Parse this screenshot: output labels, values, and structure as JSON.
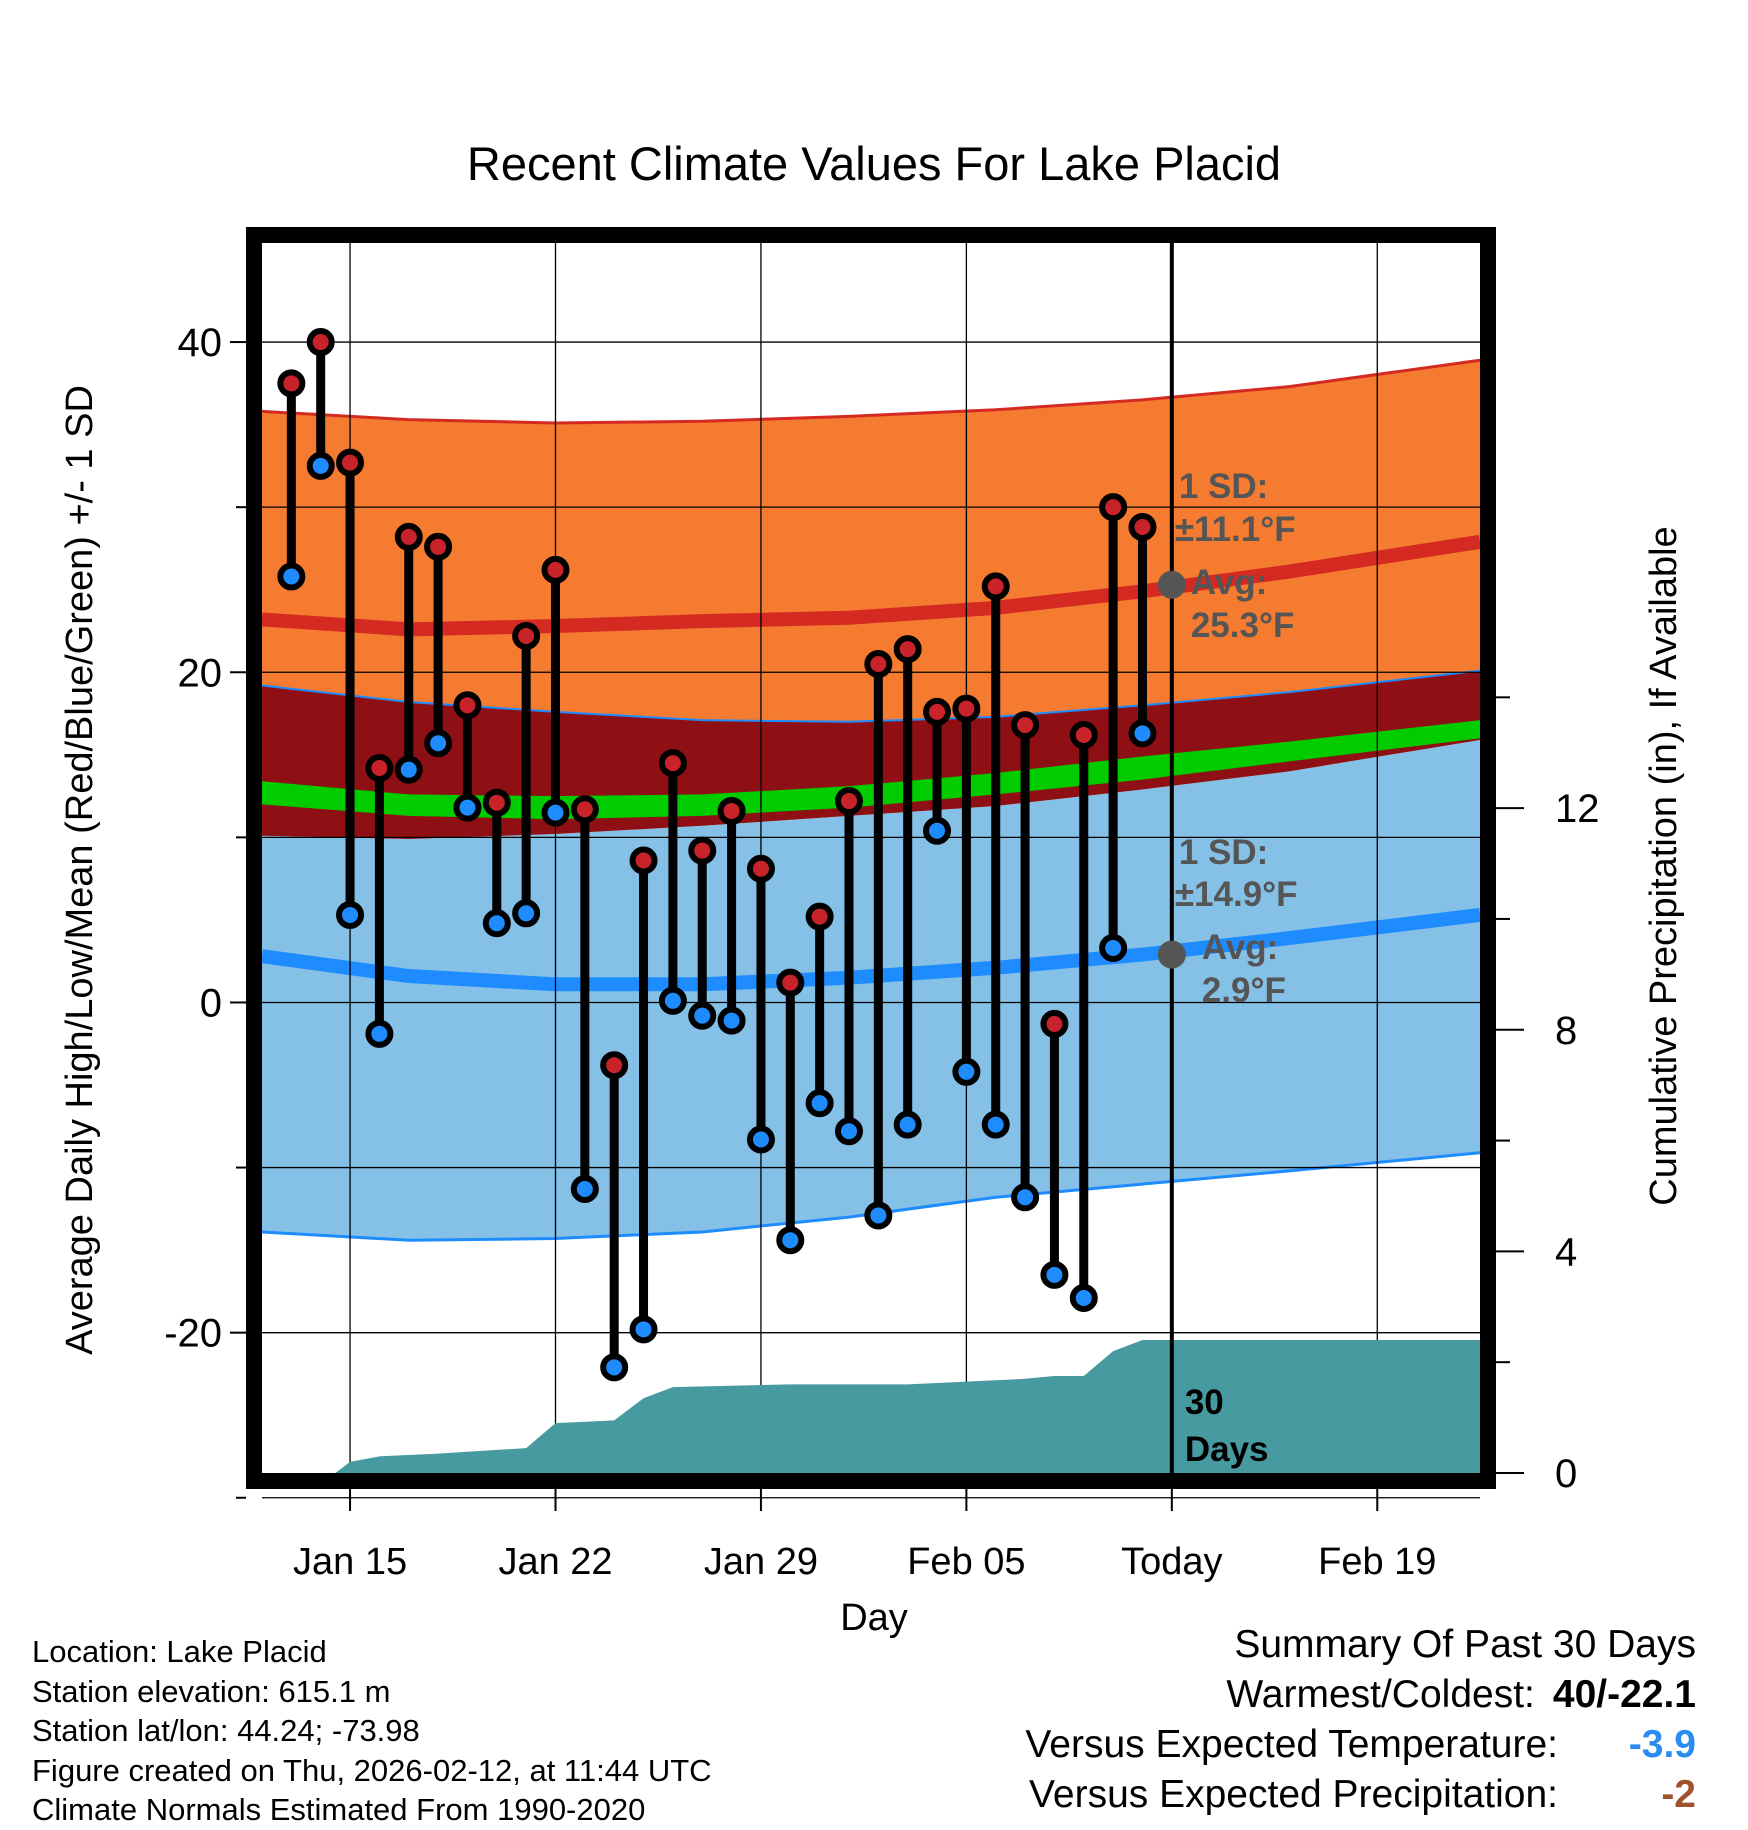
{
  "chart_data": {
    "type": "line",
    "title": "Recent Climate Values For Lake Placid",
    "xlabel": "Day",
    "ylabel": "Average Daily High/Low/Mean (Red/Blue/Green) +/- 1 SD",
    "y2label": "Cumulative Precipitation (in), If Available",
    "ylim": [
      -28.5,
      46
    ],
    "y2lim": [
      0,
      22.2
    ],
    "xlim": [
      0,
      41.5
    ],
    "y_ticks": [
      -20,
      0,
      20,
      40
    ],
    "y2_ticks": [
      0,
      4,
      8,
      12
    ],
    "x_ticks": [
      {
        "day": 3,
        "label": "Jan 15"
      },
      {
        "day": 10,
        "label": "Jan 22"
      },
      {
        "day": 17,
        "label": "Jan 29"
      },
      {
        "day": 24,
        "label": "Feb 05"
      },
      {
        "day": 31,
        "label": "Today"
      },
      {
        "day": 38,
        "label": "Feb 19"
      }
    ],
    "days": [
      1,
      2,
      3,
      4,
      5,
      6,
      7,
      8,
      9,
      10,
      11,
      12,
      13,
      14,
      15,
      16,
      17,
      18,
      19,
      20,
      21,
      22,
      23,
      24,
      25,
      26,
      27,
      28,
      29,
      30
    ],
    "highs": [
      37.5,
      40,
      32.7,
      14.2,
      28.2,
      27.6,
      18,
      12.1,
      22.2,
      26.2,
      11.7,
      -3.8,
      8.6,
      14.5,
      9.2,
      11.6,
      8.1,
      1.2,
      5.2,
      12.2,
      20.5,
      21.4,
      17.6,
      17.8,
      25.2,
      16.8,
      -1.3,
      16.2,
      30,
      28.8
    ],
    "lows": [
      25.8,
      32.5,
      5.3,
      -1.9,
      14.1,
      15.7,
      11.8,
      4.8,
      5.4,
      11.5,
      -11.3,
      -22.1,
      -19.8,
      0.1,
      -0.8,
      -1.1,
      -8.3,
      -14.4,
      -6.1,
      -7.8,
      -12.9,
      -7.4,
      10.4,
      -4.2,
      -7.4,
      -11.8,
      -16.5,
      -17.9,
      3.3,
      16.3
    ],
    "normal_high": {
      "x": [
        0,
        5,
        10,
        15,
        20,
        25,
        30,
        35,
        41.5
      ],
      "mean": [
        23.2,
        22.6,
        22.8,
        23.1,
        23.3,
        23.9,
        24.9,
        26.1,
        27.9
      ],
      "upper": [
        35.8,
        35.3,
        35.1,
        35.2,
        35.5,
        35.9,
        36.5,
        37.3,
        38.9
      ],
      "lower": [
        19.2,
        18.2,
        17.6,
        17.1,
        17.0,
        17.3,
        18.0,
        18.8,
        20.1
      ]
    },
    "normal_low": {
      "x": [
        0,
        5,
        10,
        15,
        20,
        25,
        30,
        35,
        41.5
      ],
      "mean": [
        2.8,
        1.6,
        1.1,
        1.1,
        1.5,
        2.1,
        2.9,
        3.9,
        5.3
      ],
      "upper": [
        10.1,
        9.9,
        10.2,
        10.7,
        11.3,
        11.9,
        12.9,
        14.0,
        15.9
      ],
      "lower": [
        -13.9,
        -14.4,
        -14.3,
        -13.9,
        -13.0,
        -11.8,
        -11.0,
        -10.2,
        -9.1
      ]
    },
    "normal_mean": {
      "x": [
        0,
        5,
        10,
        15,
        20,
        25,
        30,
        35,
        41.5
      ],
      "upper": [
        13.4,
        12.6,
        12.5,
        12.6,
        13.1,
        13.9,
        14.9,
        15.8,
        17.1
      ],
      "lower": [
        12.0,
        11.3,
        11.1,
        11.3,
        11.8,
        12.6,
        13.5,
        14.6,
        16.0
      ]
    },
    "precip": {
      "x": [
        0,
        2.5,
        3,
        4,
        6,
        9,
        10,
        12,
        13,
        14,
        18,
        22,
        26,
        27,
        28,
        29,
        30,
        35,
        41.5
      ],
      "y": [
        0,
        0,
        0.2,
        0.3,
        0.35,
        0.45,
        0.9,
        0.95,
        1.35,
        1.55,
        1.6,
        1.6,
        1.7,
        1.75,
        1.75,
        2.2,
        2.4,
        2.4,
        2.4
      ]
    },
    "annotations": {
      "high_sd": "1 SD:",
      "high_sd_val": "±11.1°F",
      "high_avg": "Avg:",
      "high_avg_val": "25.3°F",
      "low_sd": "1 SD:",
      "low_sd_val": "±14.9°F",
      "low_avg": "Avg:",
      "low_avg_val": "2.9°F",
      "days_label_1": "30",
      "days_label_2": "Days"
    },
    "colors": {
      "high_band": "#f47b30",
      "high_line": "#d42a22",
      "mean_band": "#8e1015",
      "mean_line": "#00cc00",
      "low_band": "#85c1e6",
      "low_line": "#1e8cff",
      "precip": "#469aa0",
      "high_dot": "#c8232a",
      "low_dot": "#1e8cff",
      "annotation": "#555555"
    }
  },
  "footer": {
    "location": "Location: Lake Placid",
    "elevation": "Station elevation: 615.1 m",
    "latlon": "Station lat/lon: 44.24; -73.98",
    "created": "Figure created on Thu, 2026-02-12, at 11:44 UTC",
    "normals": "Climate Normals Estimated From 1990-2020"
  },
  "summary": {
    "title": "Summary Of Past 30 Days",
    "warmest_label": "Warmest/Coldest:",
    "warmest_value": "40/-22.1",
    "temp_label": "Versus Expected Temperature:",
    "temp_value": "-3.9",
    "temp_color": "#2a8cf0",
    "precip_label": "Versus Expected Precipitation:",
    "precip_value": "-2",
    "precip_color": "#a0522d"
  }
}
